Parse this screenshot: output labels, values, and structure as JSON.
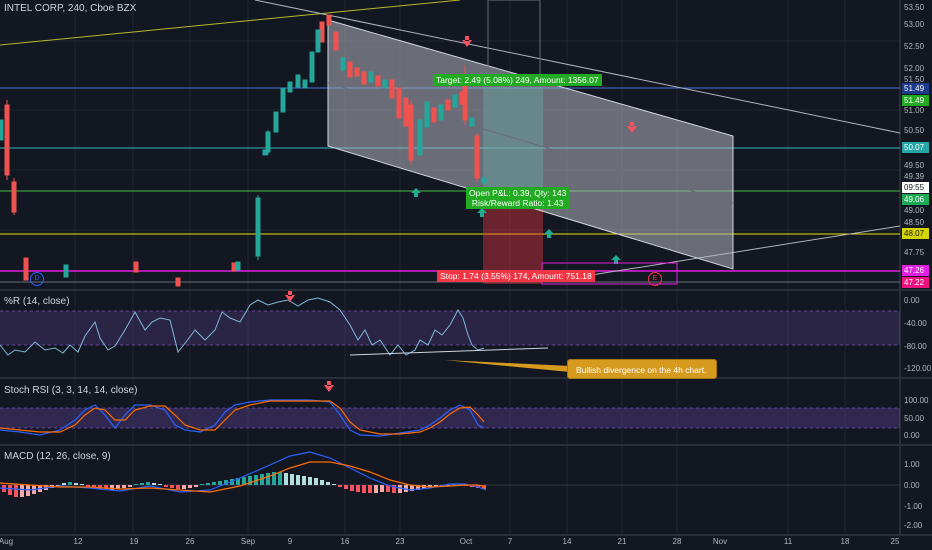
{
  "symbol": {
    "title": "INTEL CORP, 240, Cboe BZX"
  },
  "indicators": {
    "williams_r": "%R (14, close)",
    "stoch_rsi": "Stoch RSI (3, 3, 14, 14, close)",
    "macd": "MACD (12, 26, close, 9)"
  },
  "price_axis": [
    "53.50",
    "53.00",
    "52.50",
    "52.00",
    "51.50",
    "51.00",
    "50.50",
    "49.50",
    "49.00",
    "48.50",
    "47.75"
  ],
  "price_labels": [
    {
      "text": "51.49",
      "bg": "#1e3a8a",
      "fg": "#ffffff"
    },
    {
      "text": "51.49",
      "bg": "#22ab22",
      "fg": "#ffffff"
    },
    {
      "text": "50.07",
      "bg": "#26a6a6",
      "fg": "#ffffff"
    },
    {
      "text": "49.39",
      "bg": "#131722",
      "fg": "#b2b5be"
    },
    {
      "text": "09:55",
      "bg": "#ffffff",
      "fg": "#131722"
    },
    {
      "text": "49.06",
      "bg": "#1faa55",
      "fg": "#ffffff"
    },
    {
      "text": "49.00",
      "bg": "#131722",
      "fg": "#b2b5be"
    },
    {
      "text": "48.07",
      "bg": "#d4d400",
      "fg": "#131722"
    },
    {
      "text": "47.26",
      "bg": "#e020e0",
      "fg": "#ffffff"
    },
    {
      "text": "47.22",
      "bg": "#ee1080",
      "fg": "#ffffff"
    }
  ],
  "wr_axis": [
    "0.00",
    "-40.00",
    "-80.00",
    "-120.00"
  ],
  "stoch_axis": [
    "100.00",
    "50.00",
    "0.00"
  ],
  "macd_axis": [
    "1.00",
    "0.00",
    "-1.00",
    "-2.00"
  ],
  "x_axis": [
    "Aug",
    "12",
    "19",
    "26",
    "Sep",
    "9",
    "16",
    "23",
    "Oct",
    "7",
    "14",
    "21",
    "28",
    "Nov",
    "11",
    "18",
    "25"
  ],
  "position": {
    "target": "Target: 2.49 (5.08%) 249, Amount: 1356.07",
    "open_pl": "Open P&L: 0.39, Qty: 143",
    "risk_reward": "Risk/Reward Ratio: 1.43",
    "stop": "Stop: 1.74 (3.55%) 174, Amount: 751.18"
  },
  "markers": {
    "d": "D",
    "e": "E"
  },
  "callout": "Bullish divergence on the 4h chart.",
  "colors": {
    "background": "#131722",
    "up": "#26a69a",
    "down": "#ef5350",
    "target_green": "#089981",
    "stop_red": "#f23645",
    "callout": "#d69a1e",
    "channel": "#b2b5be"
  }
}
